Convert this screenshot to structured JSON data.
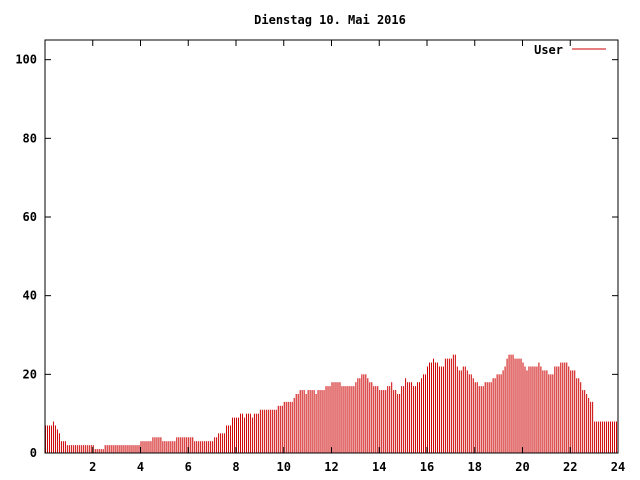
{
  "chart_data": {
    "type": "bar",
    "title": "Dienstag 10. Mai 2016",
    "xlabel": "",
    "ylabel": "",
    "xlim": [
      0,
      24
    ],
    "ylim": [
      0,
      105
    ],
    "x_ticks": [
      2,
      4,
      6,
      8,
      10,
      12,
      14,
      16,
      18,
      20,
      22,
      24
    ],
    "y_ticks": [
      0,
      20,
      40,
      60,
      80,
      100
    ],
    "grid": false,
    "legend": {
      "position": "top-right"
    },
    "bin_width": 0.083333,
    "series": [
      {
        "name": "User",
        "color": "#cc0000",
        "values": [
          7,
          7,
          7,
          7,
          8,
          7,
          6,
          5,
          3,
          3,
          3,
          2,
          2,
          2,
          2,
          2,
          2,
          2,
          2,
          2,
          2,
          2,
          2,
          2,
          2,
          1,
          1,
          1,
          1,
          1,
          2,
          2,
          2,
          2,
          2,
          2,
          2,
          2,
          2,
          2,
          2,
          2,
          2,
          2,
          2,
          2,
          2,
          2,
          3,
          3,
          3,
          3,
          3,
          3,
          4,
          4,
          4,
          4,
          4,
          3,
          3,
          3,
          3,
          3,
          3,
          3,
          4,
          4,
          4,
          4,
          4,
          4,
          4,
          4,
          4,
          3,
          3,
          3,
          3,
          3,
          3,
          3,
          3,
          3,
          3,
          4,
          4,
          5,
          5,
          5,
          5,
          7,
          7,
          7,
          9,
          9,
          9,
          9,
          10,
          10,
          9,
          10,
          10,
          10,
          9,
          10,
          10,
          10,
          11,
          11,
          11,
          11,
          11,
          11,
          11,
          11,
          11,
          12,
          12,
          12,
          13,
          13,
          13,
          13,
          13,
          14,
          15,
          15,
          16,
          16,
          16,
          15,
          16,
          16,
          16,
          16,
          15,
          16,
          16,
          16,
          16,
          17,
          17,
          17,
          18,
          18,
          18,
          18,
          18,
          17,
          17,
          17,
          17,
          17,
          17,
          17,
          18,
          19,
          19,
          20,
          20,
          20,
          19,
          18,
          18,
          17,
          17,
          17,
          16,
          16,
          16,
          16,
          17,
          17,
          18,
          16,
          16,
          15,
          15,
          17,
          17,
          19,
          18,
          18,
          18,
          17,
          17,
          18,
          18,
          19,
          20,
          20,
          22,
          23,
          23,
          24,
          23,
          23,
          22,
          22,
          22,
          24,
          24,
          24,
          24,
          25,
          25,
          22,
          21,
          21,
          22,
          22,
          21,
          20,
          20,
          19,
          18,
          18,
          17,
          17,
          17,
          18,
          18,
          18,
          18,
          19,
          19,
          20,
          20,
          20,
          21,
          22,
          24,
          25,
          25,
          25,
          24,
          24,
          24,
          24,
          23,
          22,
          21,
          22,
          22,
          22,
          22,
          22,
          23,
          22,
          21,
          21,
          21,
          20,
          20,
          20,
          22,
          22,
          22,
          23,
          23,
          23,
          23,
          22,
          21,
          21,
          21,
          19,
          19,
          18,
          16,
          16,
          15,
          14,
          13,
          13,
          8,
          8,
          8,
          8,
          8,
          8,
          8,
          8,
          8,
          8,
          8,
          8
        ]
      }
    ]
  }
}
